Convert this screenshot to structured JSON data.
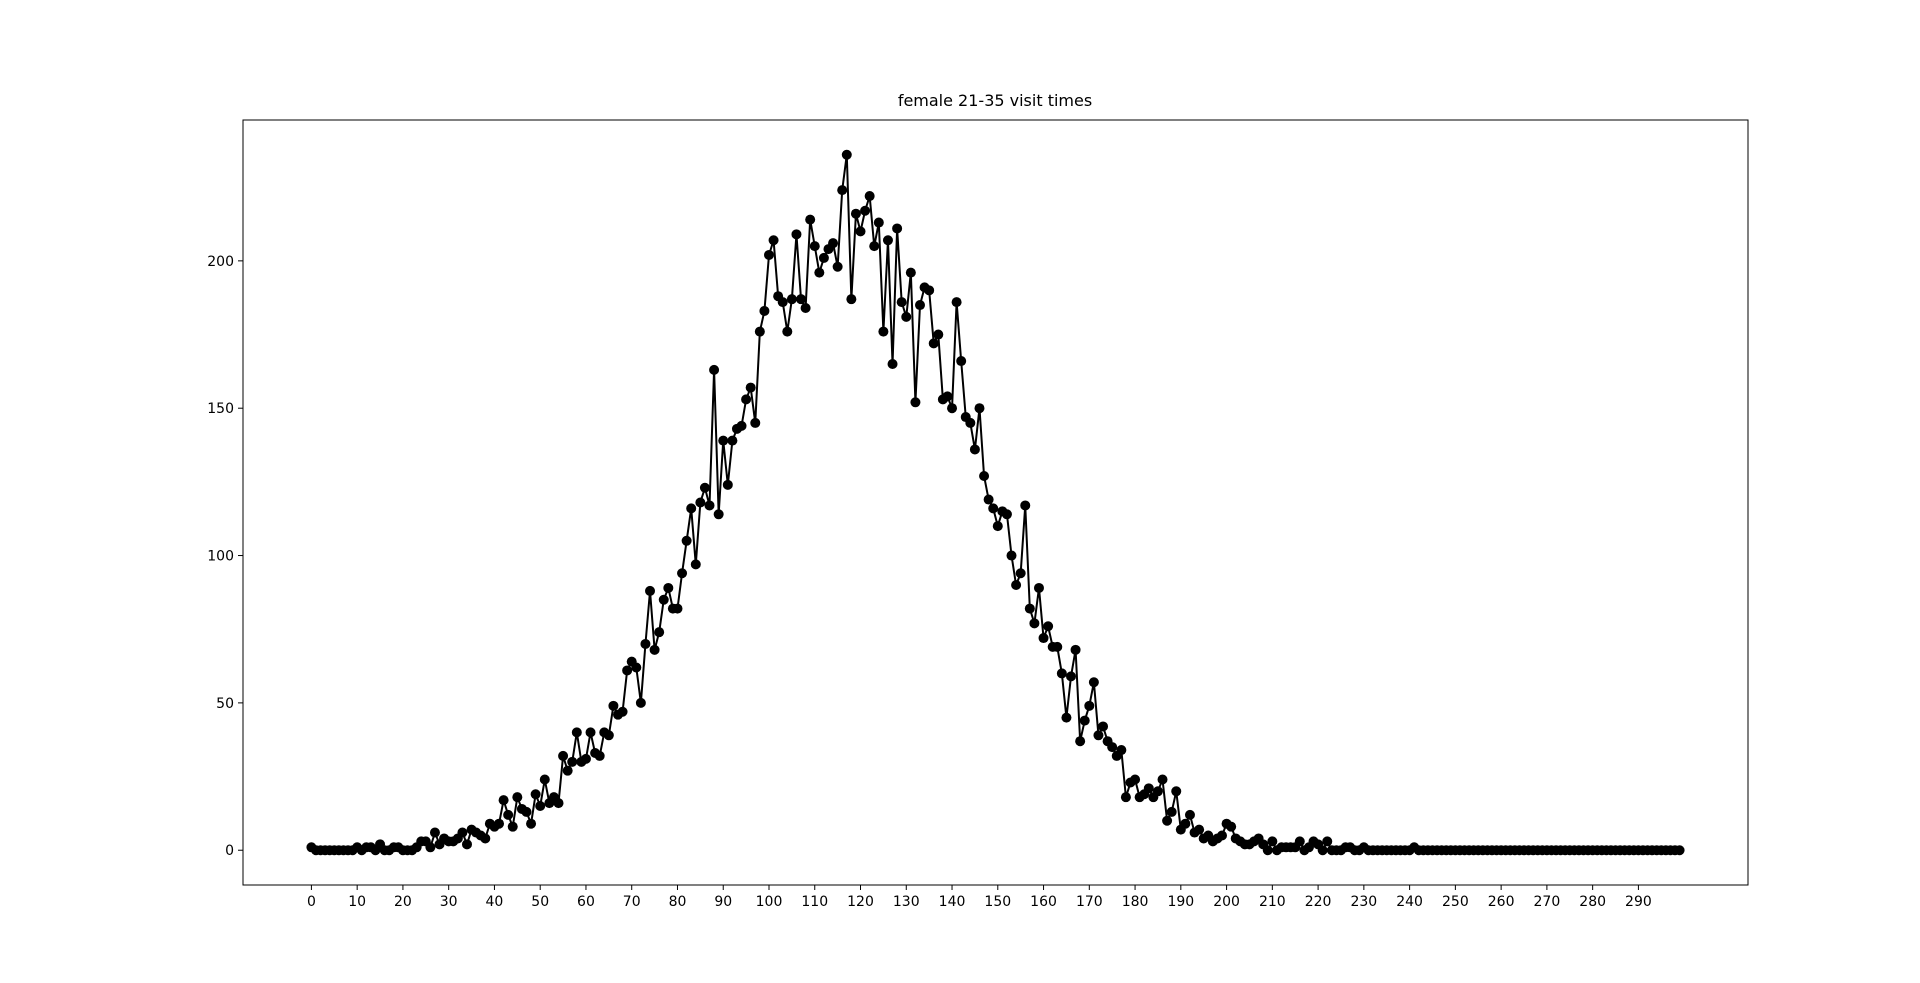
{
  "chart_data": {
    "type": "line",
    "title": "female 21-35 visit times",
    "x": [
      0,
      1,
      2,
      3,
      4,
      5,
      6,
      7,
      8,
      9,
      10,
      11,
      12,
      13,
      14,
      15,
      16,
      17,
      18,
      19,
      20,
      21,
      22,
      23,
      24,
      25,
      26,
      27,
      28,
      29,
      30,
      31,
      32,
      33,
      34,
      35,
      36,
      37,
      38,
      39,
      40,
      41,
      42,
      43,
      44,
      45,
      46,
      47,
      48,
      49,
      50,
      51,
      52,
      53,
      54,
      55,
      56,
      57,
      58,
      59,
      60,
      61,
      62,
      63,
      64,
      65,
      66,
      67,
      68,
      69,
      70,
      71,
      72,
      73,
      74,
      75,
      76,
      77,
      78,
      79,
      80,
      81,
      82,
      83,
      84,
      85,
      86,
      87,
      88,
      89,
      90,
      91,
      92,
      93,
      94,
      95,
      96,
      97,
      98,
      99,
      100,
      101,
      102,
      103,
      104,
      105,
      106,
      107,
      108,
      109,
      110,
      111,
      112,
      113,
      114,
      115,
      116,
      117,
      118,
      119,
      120,
      121,
      122,
      123,
      124,
      125,
      126,
      127,
      128,
      129,
      130,
      131,
      132,
      133,
      134,
      135,
      136,
      137,
      138,
      139,
      140,
      141,
      142,
      143,
      144,
      145,
      146,
      147,
      148,
      149,
      150,
      151,
      152,
      153,
      154,
      155,
      156,
      157,
      158,
      159,
      160,
      161,
      162,
      163,
      164,
      165,
      166,
      167,
      168,
      169,
      170,
      171,
      172,
      173,
      174,
      175,
      176,
      177,
      178,
      179,
      180,
      181,
      182,
      183,
      184,
      185,
      186,
      187,
      188,
      189,
      190,
      191,
      192,
      193,
      194,
      195,
      196,
      197,
      198,
      199,
      200,
      201,
      202,
      203,
      204,
      205,
      206,
      207,
      208,
      209,
      210,
      211,
      212,
      213,
      214,
      215,
      216,
      217,
      218,
      219,
      220,
      221,
      222,
      223,
      224,
      225,
      226,
      227,
      228,
      229,
      230,
      231,
      232,
      233,
      234,
      235,
      236,
      237,
      238,
      239,
      240,
      241,
      242,
      243,
      244,
      245,
      246,
      247,
      248,
      249,
      250,
      251,
      252,
      253,
      254,
      255,
      256,
      257,
      258,
      259,
      260,
      261,
      262,
      263,
      264,
      265,
      266,
      267,
      268,
      269,
      270,
      271,
      272,
      273,
      274,
      275,
      276,
      277,
      278,
      279,
      280,
      281,
      282,
      283,
      284,
      285,
      286,
      287,
      288,
      289,
      290,
      291,
      292,
      293,
      294,
      295,
      296,
      297,
      298,
      299
    ],
    "series": [
      {
        "color": "#000000",
        "values": [
          1,
          0,
          0,
          0,
          0,
          0,
          0,
          0,
          0,
          0,
          1,
          0,
          1,
          1,
          0,
          2,
          0,
          0,
          1,
          1,
          0,
          0,
          0,
          1,
          3,
          3,
          1,
          6,
          2,
          4,
          3,
          3,
          4,
          6,
          2,
          7,
          6,
          5,
          4,
          9,
          8,
          9,
          17,
          12,
          8,
          18,
          14,
          13,
          9,
          19,
          15,
          24,
          16,
          18,
          16,
          32,
          27,
          30,
          40,
          30,
          31,
          40,
          33,
          32,
          40,
          39,
          49,
          46,
          47,
          61,
          64,
          62,
          50,
          70,
          88,
          68,
          74,
          85,
          89,
          82,
          82,
          94,
          105,
          116,
          97,
          118,
          123,
          117,
          163,
          114,
          139,
          124,
          139,
          143,
          144,
          153,
          157,
          145,
          176,
          183,
          202,
          207,
          188,
          186,
          176,
          187,
          209,
          187,
          184,
          214,
          205,
          196,
          201,
          204,
          206,
          198,
          224,
          236,
          187,
          216,
          210,
          217,
          222,
          205,
          213,
          176,
          207,
          165,
          211,
          186,
          181,
          196,
          152,
          185,
          191,
          190,
          172,
          175,
          153,
          154,
          150,
          186,
          166,
          147,
          145,
          136,
          150,
          127,
          119,
          116,
          110,
          115,
          114,
          100,
          90,
          94,
          117,
          82,
          77,
          89,
          72,
          76,
          69,
          69,
          60,
          45,
          59,
          68,
          37,
          44,
          49,
          57,
          39,
          42,
          37,
          35,
          32,
          34,
          18,
          23,
          24,
          18,
          19,
          21,
          18,
          20,
          24,
          10,
          13,
          20,
          7,
          9,
          12,
          6,
          7,
          4,
          5,
          3,
          4,
          5,
          9,
          8,
          4,
          3,
          2,
          2,
          3,
          4,
          2,
          0,
          3,
          0,
          1,
          1,
          1,
          1,
          3,
          0,
          1,
          3,
          2,
          0,
          3,
          0,
          0,
          0,
          1,
          1,
          0,
          0,
          1,
          0,
          0,
          0,
          0,
          0,
          0,
          0,
          0,
          0,
          0,
          1,
          0,
          0,
          0,
          0,
          0,
          0,
          0,
          0,
          0,
          0,
          0,
          0,
          0,
          0,
          0,
          0,
          0,
          0,
          0,
          0,
          0,
          0,
          0,
          0,
          0,
          0,
          0,
          0,
          0,
          0,
          0,
          0,
          0,
          0,
          0,
          0,
          0,
          0,
          0,
          0,
          0,
          0,
          0,
          0,
          0,
          0,
          0,
          0,
          0,
          0,
          0,
          0,
          0,
          0,
          0,
          0,
          0,
          0
        ]
      }
    ],
    "xlim": [
      -14.95,
      313.95
    ],
    "ylim": [
      -11.8,
      247.8
    ],
    "xticks": [
      0,
      10,
      20,
      30,
      40,
      50,
      60,
      70,
      80,
      90,
      100,
      110,
      120,
      130,
      140,
      150,
      160,
      170,
      180,
      190,
      200,
      210,
      220,
      230,
      240,
      250,
      260,
      270,
      280,
      290
    ],
    "yticks": [
      0,
      50,
      100,
      150,
      200
    ],
    "markers": true
  }
}
